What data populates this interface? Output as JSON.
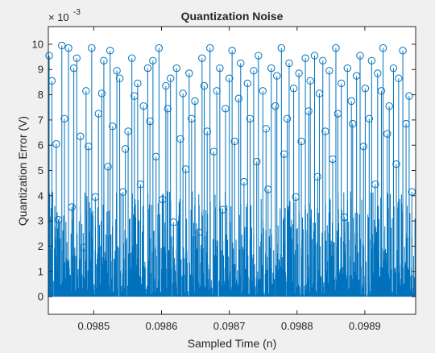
{
  "figure": {
    "background": "#f0f0f0",
    "axes_background": "#ffffff"
  },
  "chart_data": {
    "type": "stem",
    "title": "Quantization Noise",
    "xlabel": "Sampled Time (n)",
    "ylabel": "Quantization Error (V)",
    "y_exponent": "× 10^-3",
    "y_exponent_base": "× 10",
    "y_exponent_power": "-3",
    "xlim": [
      0.098433,
      0.098975
    ],
    "ylim": [
      -0.0007,
      0.0107
    ],
    "x_ticks": [
      0.0985,
      0.0986,
      0.0987,
      0.0988,
      0.0989
    ],
    "x_tick_labels": [
      "0.0985",
      "0.0986",
      "0.0987",
      "0.0988",
      "0.0989"
    ],
    "y_ticks": [
      0,
      0.001,
      0.002,
      0.003,
      0.004,
      0.005,
      0.006,
      0.007,
      0.008,
      0.009,
      0.01
    ],
    "y_tick_labels": [
      "0",
      "1",
      "2",
      "3",
      "4",
      "5",
      "6",
      "7",
      "8",
      "9",
      "10"
    ],
    "grid": false,
    "series": [
      {
        "color": "#0072bd",
        "marker": "circle-open",
        "sample_period": 5e-07,
        "x_start": 0.0984335,
        "y_highlight": [
          0.00955,
          0.00855,
          0.00605,
          0.00305,
          0.00995,
          0.00705,
          0.00985,
          0.00355,
          0.00905,
          0.00945,
          0.00635,
          0.00195,
          0.00815,
          0.00595,
          0.00985,
          0.00395,
          0.00725,
          0.00805,
          0.00935,
          0.00515,
          0.00975,
          0.00675,
          0.00895,
          0.00865,
          0.00415,
          0.00585,
          0.00655,
          0.00945,
          0.00795,
          0.00845,
          0.00445,
          0.00755,
          0.00905,
          0.00695,
          0.00935,
          0.00555,
          0.00985,
          0.00385,
          0.00835,
          0.00745,
          0.00865,
          0.00295,
          0.00905,
          0.00625,
          0.00805,
          0.00505,
          0.00885,
          0.00705,
          0.00775,
          0.00255,
          0.00945,
          0.00835,
          0.00655,
          0.00985,
          0.00575,
          0.00815,
          0.00905,
          0.00345,
          0.00745,
          0.00865,
          0.00975,
          0.00615,
          0.00785,
          0.00925,
          0.00455,
          0.00845,
          0.00705,
          0.00895,
          0.00535,
          0.00955,
          0.00815,
          0.00665,
          0.00425,
          0.00905,
          0.00755,
          0.00875,
          0.00985,
          0.00565,
          0.00705,
          0.00925,
          0.00825,
          0.00395,
          0.00885,
          0.00615,
          0.00945,
          0.00735,
          0.00855,
          0.00955,
          0.00475,
          0.00805,
          0.00935,
          0.00655,
          0.00895,
          0.00545,
          0.00985,
          0.00725,
          0.00845,
          0.00315,
          0.00905,
          0.00775,
          0.00685,
          0.00875,
          0.00955,
          0.00595,
          0.00825,
          0.00705,
          0.00935,
          0.00445,
          0.00885,
          0.00815,
          0.00985,
          0.00645,
          0.00755,
          0.00905,
          0.00525,
          0.00865,
          0.00975,
          0.00685,
          0.00795,
          0.00415
        ],
        "y_fill_note": ""
      }
    ]
  }
}
